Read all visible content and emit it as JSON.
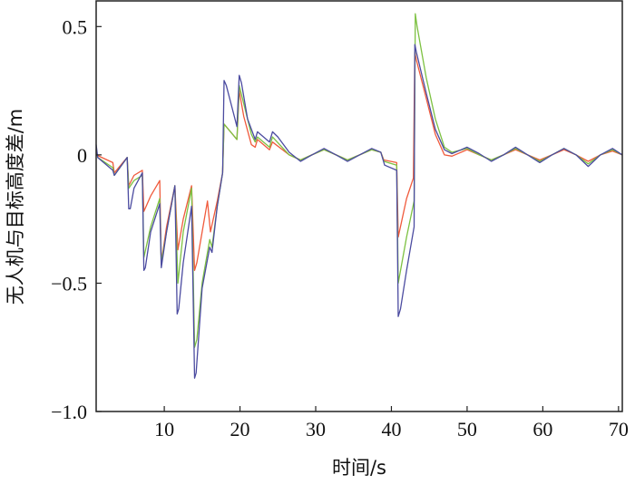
{
  "chart_data": {
    "type": "line",
    "title": "",
    "xlabel": "时间/s",
    "ylabel": "无人机与目标高度差/m",
    "xlim": [
      1,
      70.5
    ],
    "ylim": [
      -1.0,
      0.6
    ],
    "xticks": [
      10,
      20,
      30,
      40,
      50,
      60,
      70
    ],
    "xtick_labels": [
      "10",
      "20",
      "30",
      "40",
      "50",
      "60",
      "70"
    ],
    "yticks": [
      0.5,
      0,
      -0.5,
      -1.0
    ],
    "ytick_labels": [
      "0.5",
      "0",
      "−0.5",
      "−1.0"
    ],
    "grid": false,
    "legend": "none",
    "series": [
      {
        "color": "#f05a3c",
        "points": [
          [
            1,
            0.0
          ],
          [
            3.2,
            -0.03
          ],
          [
            3.4,
            -0.07
          ],
          [
            5.1,
            -0.01
          ],
          [
            5.3,
            -0.12
          ],
          [
            6,
            -0.08
          ],
          [
            7.1,
            -0.06
          ],
          [
            7.3,
            -0.22
          ],
          [
            8.2,
            -0.16
          ],
          [
            9.4,
            -0.1
          ],
          [
            9.6,
            -0.42
          ],
          [
            10.3,
            -0.28
          ],
          [
            11.4,
            -0.12
          ],
          [
            11.8,
            -0.37
          ],
          [
            12.5,
            -0.25
          ],
          [
            13.6,
            -0.12
          ],
          [
            14,
            -0.45
          ],
          [
            14.3,
            -0.42
          ],
          [
            15.7,
            -0.18
          ],
          [
            16.1,
            -0.3
          ],
          [
            17,
            -0.18
          ],
          [
            17.7,
            -0.07
          ],
          [
            17.9,
            0.12
          ],
          [
            19.6,
            0.06
          ],
          [
            19.9,
            0.25
          ],
          [
            20.5,
            0.15
          ],
          [
            21.5,
            0.04
          ],
          [
            22,
            0.03
          ],
          [
            22.3,
            0.06
          ],
          [
            23.9,
            0.02
          ],
          [
            24.3,
            0.05
          ],
          [
            26.5,
            0.0
          ],
          [
            28,
            -0.02
          ],
          [
            29.5,
            0.0
          ],
          [
            31.1,
            0.02
          ],
          [
            32.7,
            0.0
          ],
          [
            34.2,
            -0.02
          ],
          [
            35.8,
            0.0
          ],
          [
            37.4,
            0.02
          ],
          [
            38.6,
            0.01
          ],
          [
            39,
            -0.02
          ],
          [
            40.7,
            -0.03
          ],
          [
            40.9,
            -0.32
          ],
          [
            42,
            -0.17
          ],
          [
            42.9,
            -0.09
          ],
          [
            43.1,
            0.4
          ],
          [
            43.3,
            0.37
          ],
          [
            44.6,
            0.22
          ],
          [
            45.8,
            0.08
          ],
          [
            47,
            0.0
          ],
          [
            48,
            -0.005
          ],
          [
            50,
            0.02
          ],
          [
            51.6,
            0.0
          ],
          [
            53.2,
            -0.02
          ],
          [
            54.8,
            0.0
          ],
          [
            56.4,
            0.02
          ],
          [
            58,
            0.0
          ],
          [
            59.6,
            -0.02
          ],
          [
            61.2,
            0.0
          ],
          [
            62.8,
            0.02
          ],
          [
            64.4,
            0.0
          ],
          [
            66,
            -0.025
          ],
          [
            67.6,
            0.0
          ],
          [
            69.2,
            0.015
          ],
          [
            70.5,
            0.0
          ]
        ]
      },
      {
        "color": "#7dc142",
        "points": [
          [
            1,
            0.02
          ],
          [
            1.2,
            -0.01
          ],
          [
            3.2,
            -0.05
          ],
          [
            3.4,
            -0.08
          ],
          [
            5.1,
            -0.01
          ],
          [
            5.3,
            -0.13
          ],
          [
            6,
            -0.1
          ],
          [
            7.1,
            -0.08
          ],
          [
            7.3,
            -0.4
          ],
          [
            8.2,
            -0.28
          ],
          [
            9.4,
            -0.17
          ],
          [
            9.6,
            -0.42
          ],
          [
            10.3,
            -0.3
          ],
          [
            11.4,
            -0.12
          ],
          [
            11.8,
            -0.5
          ],
          [
            12.5,
            -0.3
          ],
          [
            13.6,
            -0.13
          ],
          [
            14,
            -0.75
          ],
          [
            14.3,
            -0.72
          ],
          [
            15,
            -0.5
          ],
          [
            16,
            -0.33
          ],
          [
            16.3,
            -0.36
          ],
          [
            17,
            -0.2
          ],
          [
            17.7,
            -0.07
          ],
          [
            17.9,
            0.12
          ],
          [
            19.6,
            0.06
          ],
          [
            19.9,
            0.27
          ],
          [
            20.5,
            0.2
          ],
          [
            21.5,
            0.08
          ],
          [
            22,
            0.05
          ],
          [
            22.3,
            0.07
          ],
          [
            23.9,
            0.03
          ],
          [
            24.3,
            0.07
          ],
          [
            26.5,
            0.0
          ],
          [
            28,
            -0.02
          ],
          [
            29.5,
            0.0
          ],
          [
            31.1,
            0.02
          ],
          [
            32.7,
            0.0
          ],
          [
            34.2,
            -0.02
          ],
          [
            35.8,
            0.0
          ],
          [
            37.4,
            0.02
          ],
          [
            38.6,
            0.01
          ],
          [
            39,
            -0.025
          ],
          [
            40.7,
            -0.04
          ],
          [
            40.9,
            -0.5
          ],
          [
            42,
            -0.32
          ],
          [
            43,
            -0.18
          ],
          [
            43.15,
            0.55
          ],
          [
            43.4,
            0.5
          ],
          [
            44.6,
            0.3
          ],
          [
            45.8,
            0.14
          ],
          [
            47,
            0.03
          ],
          [
            48,
            0.01
          ],
          [
            50,
            0.025
          ],
          [
            51.6,
            0.0
          ],
          [
            53.2,
            -0.02
          ],
          [
            54.8,
            0.0
          ],
          [
            56.4,
            0.025
          ],
          [
            58,
            0.0
          ],
          [
            59.6,
            -0.025
          ],
          [
            61.2,
            0.0
          ],
          [
            62.8,
            0.025
          ],
          [
            64.4,
            0.0
          ],
          [
            66,
            -0.035
          ],
          [
            67.6,
            0.0
          ],
          [
            69.2,
            0.02
          ],
          [
            70.5,
            0.0
          ]
        ]
      },
      {
        "color": "#4b4ba0",
        "points": [
          [
            1,
            0.04
          ],
          [
            1.2,
            -0.01
          ],
          [
            3.2,
            -0.06
          ],
          [
            3.4,
            -0.08
          ],
          [
            5.1,
            -0.01
          ],
          [
            5.3,
            -0.21
          ],
          [
            5.5,
            -0.21
          ],
          [
            6,
            -0.13
          ],
          [
            7.1,
            -0.07
          ],
          [
            7.3,
            -0.45
          ],
          [
            7.5,
            -0.44
          ],
          [
            8.2,
            -0.3
          ],
          [
            9.4,
            -0.19
          ],
          [
            9.6,
            -0.44
          ],
          [
            10.3,
            -0.3
          ],
          [
            11.4,
            -0.12
          ],
          [
            11.7,
            -0.62
          ],
          [
            11.9,
            -0.6
          ],
          [
            12.5,
            -0.42
          ],
          [
            13.6,
            -0.2
          ],
          [
            14,
            -0.87
          ],
          [
            14.2,
            -0.85
          ],
          [
            15,
            -0.52
          ],
          [
            16,
            -0.36
          ],
          [
            16.3,
            -0.38
          ],
          [
            17,
            -0.2
          ],
          [
            17.7,
            -0.07
          ],
          [
            17.9,
            0.29
          ],
          [
            18.2,
            0.27
          ],
          [
            19.6,
            0.11
          ],
          [
            19.9,
            0.31
          ],
          [
            20.2,
            0.28
          ],
          [
            21,
            0.14
          ],
          [
            22,
            0.06
          ],
          [
            22.3,
            0.09
          ],
          [
            23.9,
            0.05
          ],
          [
            24.3,
            0.09
          ],
          [
            25,
            0.07
          ],
          [
            26.5,
            0.01
          ],
          [
            28,
            -0.025
          ],
          [
            29.5,
            0.0
          ],
          [
            31.1,
            0.025
          ],
          [
            32.7,
            0.0
          ],
          [
            34.2,
            -0.025
          ],
          [
            35.8,
            0.0
          ],
          [
            37.4,
            0.025
          ],
          [
            38.6,
            0.01
          ],
          [
            39.1,
            -0.04
          ],
          [
            40.7,
            -0.06
          ],
          [
            40.9,
            -0.63
          ],
          [
            41.2,
            -0.6
          ],
          [
            42,
            -0.45
          ],
          [
            43,
            -0.28
          ],
          [
            43.1,
            0.43
          ],
          [
            43.3,
            0.4
          ],
          [
            44.6,
            0.24
          ],
          [
            45.8,
            0.1
          ],
          [
            47,
            0.02
          ],
          [
            48,
            0.005
          ],
          [
            50,
            0.03
          ],
          [
            51.6,
            0.005
          ],
          [
            53.2,
            -0.025
          ],
          [
            54.8,
            0.0
          ],
          [
            56.4,
            0.03
          ],
          [
            58,
            0.0
          ],
          [
            59.6,
            -0.03
          ],
          [
            61.2,
            0.0
          ],
          [
            62.8,
            0.025
          ],
          [
            64.4,
            0.0
          ],
          [
            66,
            -0.045
          ],
          [
            67.6,
            0.0
          ],
          [
            69.2,
            0.025
          ],
          [
            70.5,
            0.0
          ]
        ]
      }
    ]
  }
}
